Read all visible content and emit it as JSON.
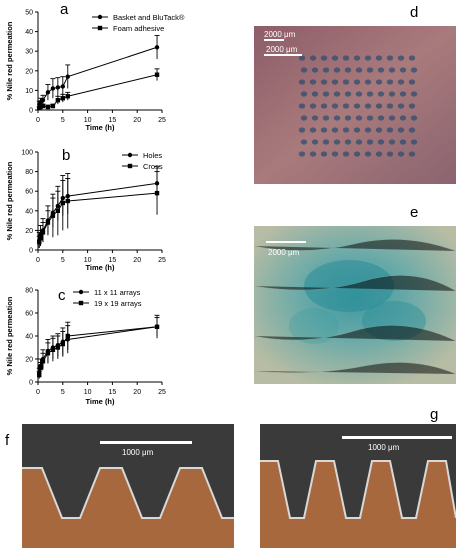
{
  "panel_labels": {
    "a": "a",
    "b": "b",
    "c": "c",
    "d": "d",
    "e": "e",
    "f": "f",
    "g": "g"
  },
  "chart_data": [
    {
      "panel": "a",
      "type": "line",
      "xlabel": "Time (h)",
      "ylabel": "% Nile red permeation",
      "xlim": [
        0,
        25
      ],
      "ylim": [
        0,
        50
      ],
      "xticks": [
        "0",
        "5",
        "10",
        "15",
        "20",
        "25"
      ],
      "yticks": [
        "0",
        "10",
        "20",
        "30",
        "40",
        "50"
      ],
      "legend_position": "top-left",
      "series": [
        {
          "name": "Basket and BluTack®",
          "marker": "circle",
          "x": [
            0.25,
            0.5,
            1,
            2,
            3,
            4,
            5,
            6,
            24
          ],
          "y": [
            3,
            4,
            5,
            9,
            11,
            11.5,
            12,
            17,
            32
          ],
          "err": [
            1.5,
            2,
            2.5,
            4,
            5,
            5,
            5,
            6,
            6
          ]
        },
        {
          "name": "Foam adhesive",
          "marker": "square",
          "x": [
            0.25,
            0.5,
            1,
            2,
            3,
            4,
            5,
            6,
            24
          ],
          "y": [
            1,
            1.5,
            2,
            1.5,
            2,
            5,
            6,
            7,
            18
          ],
          "err": [
            0.5,
            1,
            1,
            1,
            1,
            2,
            2,
            2,
            3
          ]
        }
      ]
    },
    {
      "panel": "b",
      "type": "line",
      "xlabel": "Time (h)",
      "ylabel": "% Nile red permeation",
      "xlim": [
        0,
        25
      ],
      "ylim": [
        0,
        100
      ],
      "xticks": [
        "0",
        "5",
        "10",
        "15",
        "20",
        "25"
      ],
      "yticks": [
        "0",
        "20",
        "40",
        "60",
        "80",
        "100"
      ],
      "legend_position": "top-right",
      "series": [
        {
          "name": "Holes",
          "marker": "circle",
          "x": [
            0.25,
            0.5,
            1,
            2,
            3,
            4,
            5,
            6,
            24
          ],
          "y": [
            10,
            15,
            20,
            30,
            38,
            45,
            53,
            55,
            68
          ],
          "err": [
            8,
            10,
            12,
            15,
            15,
            15,
            18,
            18,
            17
          ]
        },
        {
          "name": "Cross",
          "marker": "square",
          "x": [
            0.25,
            0.5,
            1,
            2,
            3,
            4,
            5,
            6,
            24
          ],
          "y": [
            8,
            12,
            18,
            28,
            35,
            40,
            48,
            50,
            58
          ],
          "err": [
            6,
            8,
            10,
            12,
            22,
            25,
            28,
            28,
            22
          ]
        }
      ]
    },
    {
      "panel": "c",
      "type": "line",
      "xlabel": "Time (h)",
      "ylabel": "% Nile red permeation",
      "xlim": [
        0,
        25
      ],
      "ylim": [
        0,
        80
      ],
      "xticks": [
        "0",
        "5",
        "10",
        "15",
        "20",
        "25"
      ],
      "yticks": [
        "0",
        "20",
        "40",
        "60",
        "80"
      ],
      "legend_position": "top-left",
      "series": [
        {
          "name": "11 x 11 arrays",
          "marker": "circle",
          "x": [
            0.25,
            0.5,
            1,
            2,
            3,
            4,
            5,
            6,
            24
          ],
          "y": [
            8,
            14,
            20,
            27,
            30,
            32,
            35,
            37,
            48
          ],
          "err": [
            4,
            6,
            8,
            10,
            10,
            10,
            12,
            12,
            8
          ]
        },
        {
          "name": "19 x 19 arrays",
          "marker": "square",
          "x": [
            0.25,
            0.5,
            1,
            2,
            3,
            4,
            5,
            6,
            24
          ],
          "y": [
            6,
            12,
            18,
            25,
            28,
            30,
            33,
            40,
            48
          ],
          "err": [
            3,
            5,
            7,
            9,
            10,
            10,
            11,
            12,
            10
          ]
        }
      ]
    }
  ],
  "images": {
    "d": {
      "scale_labels": [
        "2000 μm",
        "2000 μm"
      ],
      "palette": {
        "base": "#9a6a72",
        "spot": "#2a4a6a"
      }
    },
    "e": {
      "scale_label": "2000 μm",
      "palette": {
        "base": "#b2b8a0",
        "stain": "#2c8f98"
      }
    },
    "f": {
      "scale_label": "1000 μm",
      "palette": {
        "top": "#3b3b3b",
        "tissue": "#a8683e"
      }
    },
    "g": {
      "scale_label": "1000 μm",
      "palette": {
        "top": "#3b3b3b",
        "tissue": "#a8683e"
      }
    }
  }
}
